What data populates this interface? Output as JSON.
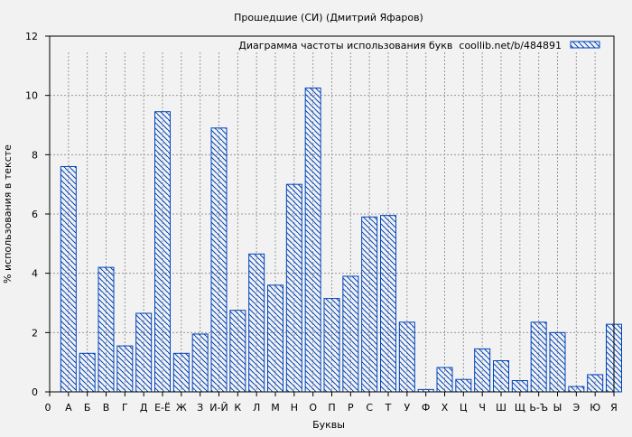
{
  "chart_data": {
    "type": "bar",
    "title": "Прошедшие (СИ) (Дмитрий Яфаров)",
    "xlabel": "Буквы",
    "ylabel": "% использования в тексте",
    "legend": "Диаграмма частоты использования букв  coollib.net/b/484891",
    "legend_position": "top-right",
    "origin_label": "0",
    "ylim": [
      0,
      12
    ],
    "yticks": [
      0,
      2,
      4,
      6,
      8,
      10,
      12
    ],
    "grid": true,
    "bar_color": "#0044bb",
    "categories": [
      "А",
      "Б",
      "В",
      "Г",
      "Д",
      "Е-Ё",
      "Ж",
      "З",
      "И-Й",
      "К",
      "Л",
      "М",
      "Н",
      "О",
      "П",
      "Р",
      "С",
      "Т",
      "У",
      "Ф",
      "Х",
      "Ц",
      "Ч",
      "Ш",
      "Щ",
      "Ь-Ъ",
      "Ы",
      "Э",
      "Ю",
      "Я"
    ],
    "values": [
      7.6,
      1.3,
      4.2,
      1.55,
      2.65,
      9.45,
      1.3,
      1.95,
      8.9,
      2.75,
      4.65,
      3.6,
      7.0,
      10.25,
      3.15,
      3.9,
      5.9,
      5.95,
      2.35,
      0.08,
      0.82,
      0.42,
      1.45,
      1.05,
      0.38,
      2.35,
      2.0,
      0.18,
      0.58,
      2.28
    ]
  }
}
